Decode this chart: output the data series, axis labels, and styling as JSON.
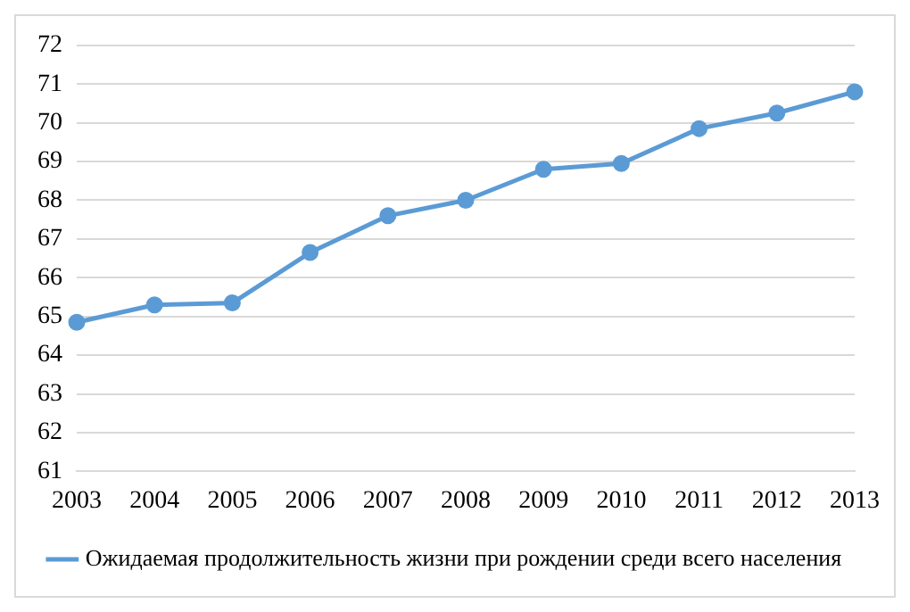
{
  "chart_data": {
    "type": "line",
    "categories": [
      "2003",
      "2004",
      "2005",
      "2006",
      "2007",
      "2008",
      "2009",
      "2010",
      "2011",
      "2012",
      "2013"
    ],
    "series": [
      {
        "name": "Ожидаемая продолжительность жизни при рождении среди всего населения",
        "color": "#5b9bd5",
        "values": [
          64.85,
          65.3,
          65.35,
          66.65,
          67.6,
          68.0,
          68.8,
          68.95,
          69.85,
          70.25,
          70.8
        ]
      }
    ],
    "ylim": [
      61,
      72
    ],
    "yticks": [
      61,
      62,
      63,
      64,
      65,
      66,
      67,
      68,
      69,
      70,
      71,
      72
    ],
    "grid": "y",
    "legend": "bottom",
    "marker": "circle",
    "line_style": "solid"
  }
}
